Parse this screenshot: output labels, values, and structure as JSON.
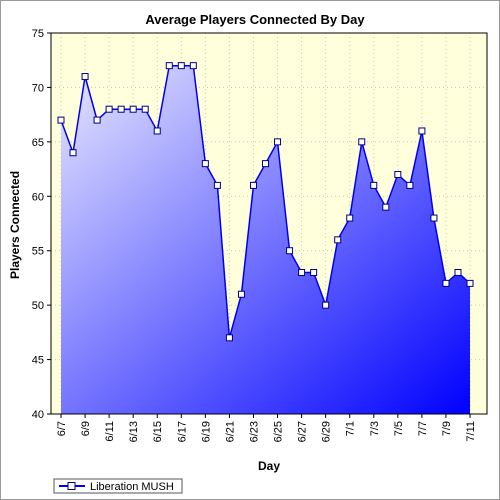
{
  "chart_data": {
    "type": "area",
    "title": "Average Players Connected By Day",
    "xlabel": "Day",
    "ylabel": "Players Connected",
    "ylim": [
      40,
      75
    ],
    "yticks": [
      40,
      45,
      50,
      55,
      60,
      65,
      70,
      75
    ],
    "grid": true,
    "legend_position": "bottom-left",
    "x": [
      "6/7",
      "6/8",
      "6/9",
      "6/10",
      "6/11",
      "6/12",
      "6/13",
      "6/14",
      "6/15",
      "6/16",
      "6/17",
      "6/18",
      "6/19",
      "6/20",
      "6/21",
      "6/22",
      "6/23",
      "6/24",
      "6/25",
      "6/26",
      "6/27",
      "6/28",
      "6/29",
      "6/30",
      "7/1",
      "7/2",
      "7/3",
      "7/4",
      "7/5",
      "7/6",
      "7/7",
      "7/8",
      "7/9",
      "7/10",
      "7/11"
    ],
    "xtick_labels": [
      "6/7",
      "6/9",
      "6/11",
      "6/13",
      "6/15",
      "6/17",
      "6/19",
      "6/21",
      "6/23",
      "6/25",
      "6/27",
      "6/29",
      "7/1",
      "7/3",
      "7/5",
      "7/7",
      "7/9",
      "7/11"
    ],
    "series": [
      {
        "name": "Liberation MUSH",
        "values": [
          67,
          64,
          71,
          67,
          68,
          68,
          68,
          68,
          66,
          72,
          72,
          72,
          63,
          61,
          47,
          51,
          61,
          63,
          65,
          55,
          53,
          53,
          50,
          56,
          58,
          65,
          61,
          59,
          62,
          61,
          66,
          58,
          52,
          53,
          52
        ]
      }
    ],
    "colors": {
      "plot_background": "#ffffdc",
      "line": "#0000ee",
      "fill_light": "#e8e8ff",
      "fill_dark": "#0000ff",
      "marker_fill": "#ffffff",
      "marker_stroke": "#000080",
      "grid": "#c8c8b4",
      "axis": "#000000"
    }
  }
}
